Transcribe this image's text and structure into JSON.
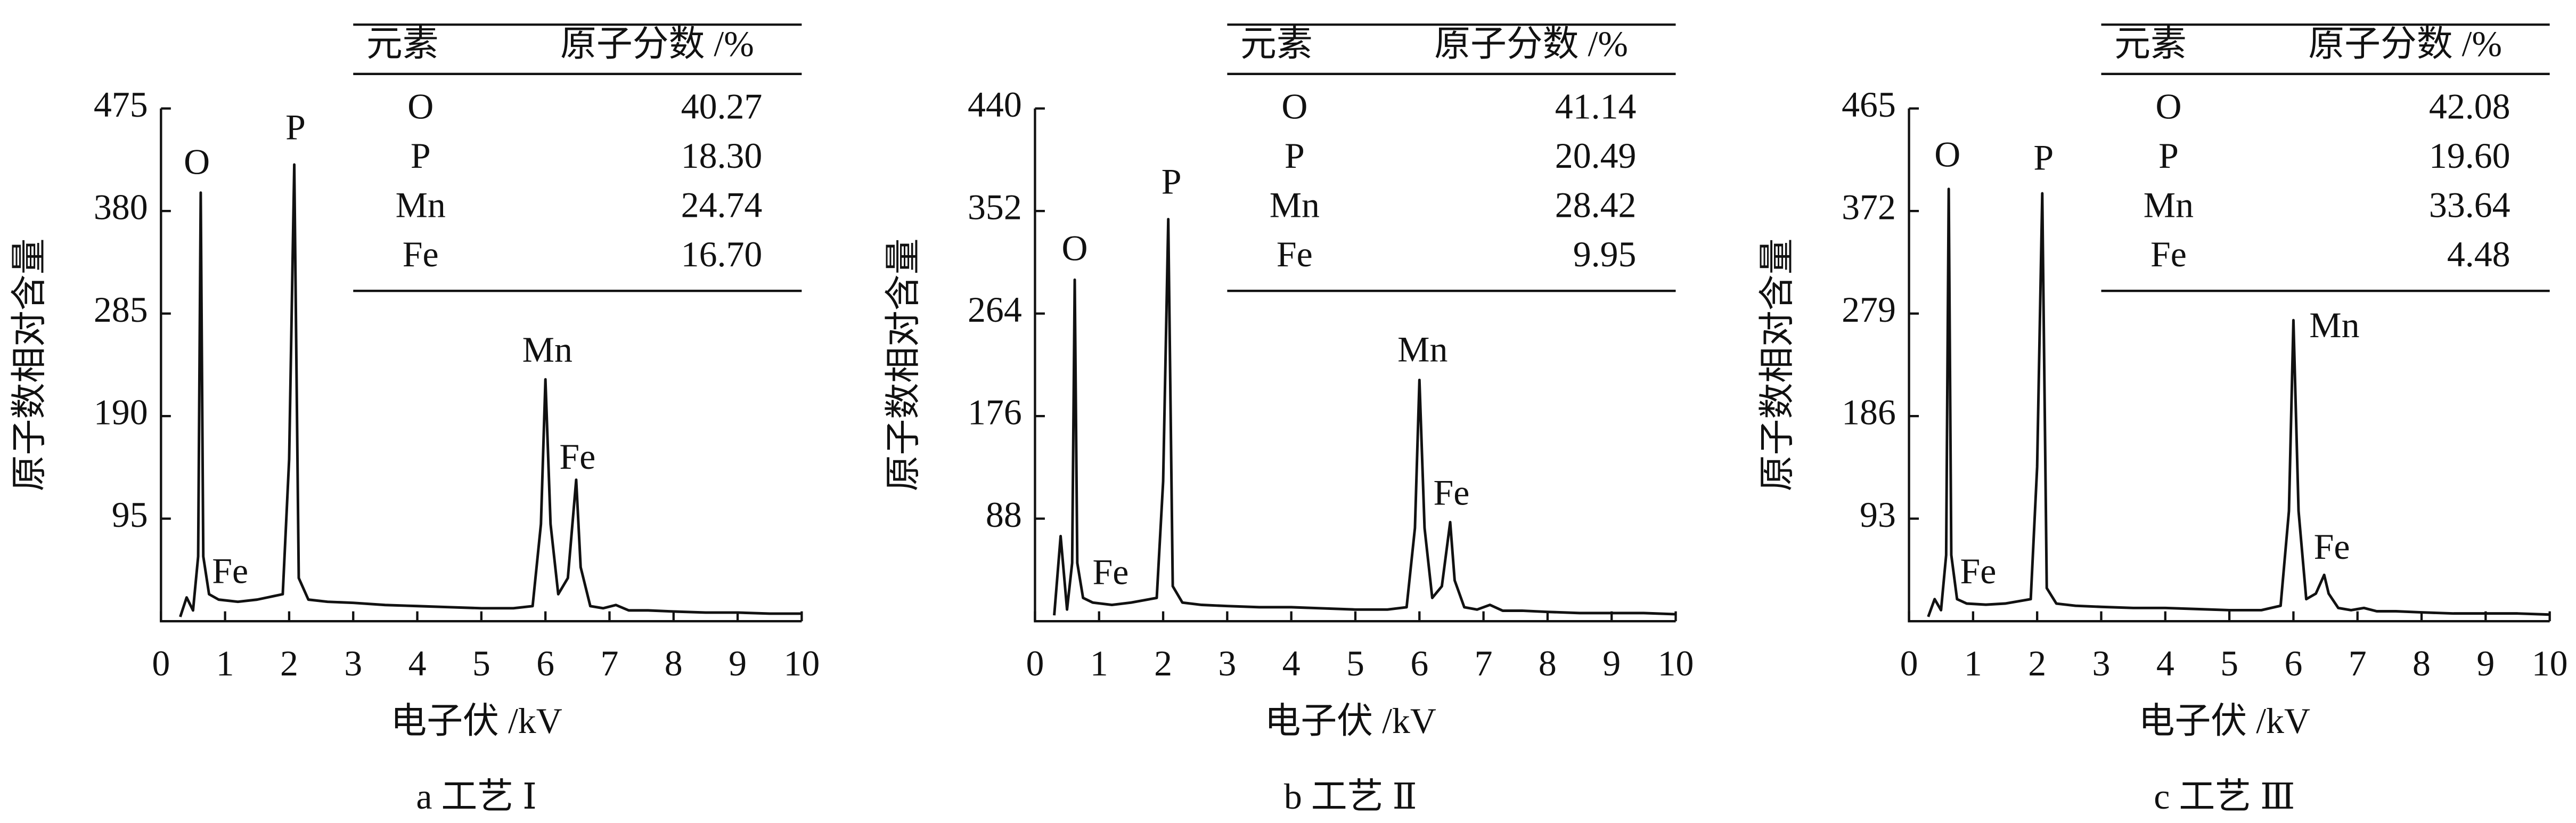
{
  "chart_data": [
    {
      "type": "line",
      "caption": "a 工艺 Ⅰ",
      "xlabel": "电子伏 /kV",
      "ylabel": "原子数相对含量",
      "xlim": [
        0,
        10
      ],
      "xticks": [
        0,
        1,
        2,
        3,
        4,
        5,
        6,
        7,
        8,
        9,
        10
      ],
      "ylim": [
        0,
        475
      ],
      "yticks": [
        95,
        190,
        285,
        380,
        475
      ],
      "color": "#111111",
      "x": [
        0.3,
        0.4,
        0.5,
        0.58,
        0.62,
        0.66,
        0.75,
        0.9,
        1.2,
        1.5,
        1.9,
        2.0,
        2.08,
        2.15,
        2.3,
        2.6,
        3.0,
        3.5,
        4,
        4.5,
        5,
        5.5,
        5.8,
        5.93,
        6.0,
        6.08,
        6.2,
        6.35,
        6.48,
        6.55,
        6.7,
        6.9,
        7.1,
        7.3,
        7.6,
        8,
        8.5,
        9,
        9.5,
        10
      ],
      "values": [
        4,
        22,
        10,
        60,
        397,
        60,
        25,
        20,
        18,
        20,
        25,
        150,
        423,
        40,
        20,
        18,
        17,
        15,
        14,
        13,
        12,
        12,
        14,
        90,
        224,
        90,
        25,
        40,
        131,
        50,
        14,
        12,
        15,
        10,
        10,
        9,
        8,
        8,
        7,
        7
      ],
      "annotations": [
        "O",
        "P",
        "Mn",
        "Fe",
        "Fe"
      ],
      "table": {
        "columns": [
          "元素",
          "原子分数 /%"
        ],
        "rows": [
          [
            "O",
            "40.27"
          ],
          [
            "P",
            "18.30"
          ],
          [
            "Mn",
            "24.74"
          ],
          [
            "Fe",
            "16.70"
          ]
        ]
      }
    },
    {
      "type": "line",
      "caption": "b 工艺 Ⅱ",
      "xlabel": "电子伏 /kV",
      "ylabel": "原子数相对含量",
      "xlim": [
        0,
        10
      ],
      "xticks": [
        0,
        1,
        2,
        3,
        4,
        5,
        6,
        7,
        8,
        9,
        10
      ],
      "ylim": [
        0,
        440
      ],
      "yticks": [
        88,
        176,
        264,
        352,
        440
      ],
      "color": "#111111",
      "x": [
        0.3,
        0.4,
        0.5,
        0.58,
        0.62,
        0.66,
        0.75,
        0.9,
        1.2,
        1.5,
        1.9,
        2.0,
        2.08,
        2.15,
        2.3,
        2.6,
        3.0,
        3.5,
        4,
        4.5,
        5,
        5.5,
        5.8,
        5.93,
        6.0,
        6.08,
        6.2,
        6.35,
        6.48,
        6.55,
        6.7,
        6.9,
        7.1,
        7.3,
        7.6,
        8,
        8.5,
        9,
        9.5,
        10
      ],
      "values": [
        5,
        73,
        10,
        50,
        293,
        50,
        20,
        16,
        14,
        16,
        20,
        120,
        345,
        30,
        16,
        14,
        13,
        12,
        12,
        11,
        10,
        10,
        12,
        80,
        207,
        80,
        20,
        30,
        85,
        35,
        12,
        10,
        14,
        9,
        9,
        8,
        7,
        7,
        7,
        6
      ],
      "annotations": [
        "O",
        "P",
        "Mn",
        "Fe",
        "Fe"
      ],
      "table": {
        "columns": [
          "元素",
          "原子分数 /%"
        ],
        "rows": [
          [
            "O",
            "41.14"
          ],
          [
            "P",
            "20.49"
          ],
          [
            "Mn",
            "28.42"
          ],
          [
            "Fe",
            "9.95"
          ]
        ]
      }
    },
    {
      "type": "line",
      "caption": "c 工艺 Ⅲ",
      "xlabel": "电子伏 /kV",
      "ylabel": "原子数相对含量",
      "xlim": [
        0,
        10
      ],
      "xticks": [
        0,
        1,
        2,
        3,
        4,
        5,
        6,
        7,
        8,
        9,
        10
      ],
      "ylim": [
        0,
        465
      ],
      "yticks": [
        93,
        186,
        279,
        372,
        465
      ],
      "color": "#111111",
      "x": [
        0.3,
        0.4,
        0.5,
        0.58,
        0.62,
        0.66,
        0.75,
        0.9,
        1.2,
        1.5,
        1.9,
        2.0,
        2.08,
        2.15,
        2.3,
        2.6,
        3.0,
        3.5,
        4,
        4.5,
        5,
        5.5,
        5.8,
        5.93,
        6.0,
        6.08,
        6.2,
        6.35,
        6.48,
        6.55,
        6.7,
        6.9,
        7.1,
        7.3,
        7.6,
        8,
        8.5,
        9,
        9.5,
        10
      ],
      "values": [
        4,
        20,
        10,
        60,
        392,
        60,
        20,
        16,
        15,
        16,
        20,
        140,
        388,
        30,
        16,
        14,
        13,
        12,
        12,
        11,
        10,
        10,
        14,
        100,
        273,
        100,
        20,
        25,
        42,
        25,
        12,
        10,
        12,
        9,
        9,
        8,
        7,
        7,
        7,
        6
      ],
      "annotations": [
        "O",
        "P",
        "Mn",
        "Fe",
        "Fe"
      ],
      "table": {
        "columns": [
          "元素",
          "原子分数 /%"
        ],
        "rows": [
          [
            "O",
            "42.08"
          ],
          [
            "P",
            "19.60"
          ],
          [
            "Mn",
            "33.64"
          ],
          [
            "Fe",
            "4.48"
          ]
        ]
      }
    }
  ]
}
